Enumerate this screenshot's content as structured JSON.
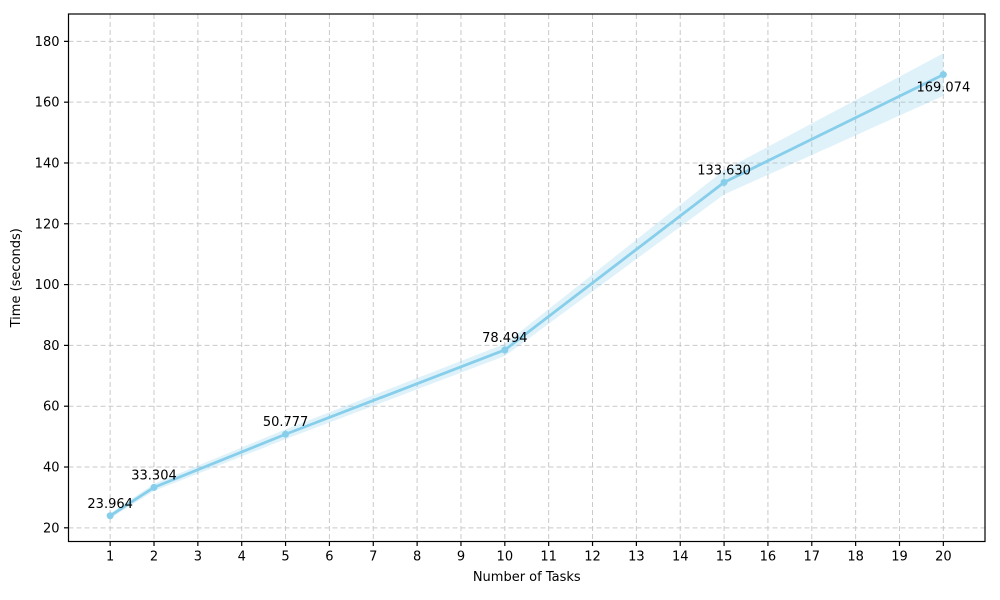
{
  "chart_data": {
    "type": "line",
    "title": "",
    "xlabel": "Number of Tasks",
    "ylabel": "Time (seconds)",
    "x": [
      1,
      2,
      5,
      10,
      15,
      20
    ],
    "y": [
      23.964,
      33.304,
      50.777,
      78.494,
      133.63,
      169.074
    ],
    "point_labels": [
      "23.964",
      "33.304",
      "50.777",
      "78.494",
      "133.630",
      "169.074"
    ],
    "label_positions": [
      "above",
      "above",
      "above",
      "above",
      "above",
      "below"
    ],
    "band_halfwidths": [
      0.8,
      1.2,
      1.6,
      2.0,
      4.0,
      7.0
    ],
    "x_ticks": [
      1,
      2,
      3,
      4,
      5,
      6,
      7,
      8,
      9,
      10,
      11,
      12,
      13,
      14,
      15,
      16,
      17,
      18,
      19,
      20
    ],
    "y_ticks": [
      20,
      40,
      60,
      80,
      100,
      120,
      140,
      160,
      180
    ],
    "xlim": [
      0.05,
      20.95
    ],
    "ylim": [
      15.5,
      189.0
    ],
    "grid": true,
    "grid_style": "dashed",
    "legend": false,
    "colors": {
      "line": "#87ceeb",
      "marker": "#87ceeb",
      "band": "#87ceeb",
      "band_opacity": 0.27,
      "grid": "#c9c9c9",
      "spine": "#000000",
      "text": "#000000",
      "background": "#ffffff"
    }
  }
}
